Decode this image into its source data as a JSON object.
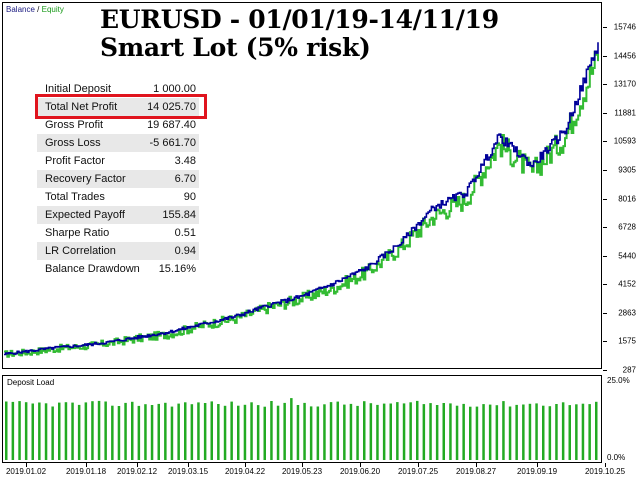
{
  "chart": {
    "legend": {
      "balance": "Balance",
      "separator": "/",
      "equity": "Equity"
    },
    "title_line1": "EURUSD - 01/01/19-14/11/19",
    "title_line2": "Smart Lot (5% risk)",
    "colors": {
      "balance": "#000099",
      "equity": "#33bb33",
      "deposit_load": "#22aa22",
      "highlight": "#e0141e"
    }
  },
  "stats": [
    {
      "label": "Initial Deposit",
      "value": "1 000.00"
    },
    {
      "label": "Total Net Profit",
      "value": "14 025.70"
    },
    {
      "label": "Gross Profit",
      "value": "19 687.40"
    },
    {
      "label": "Gross Loss",
      "value": "-5 661.70"
    },
    {
      "label": "Profit Factor",
      "value": "3.48"
    },
    {
      "label": "Recovery Factor",
      "value": "6.70"
    },
    {
      "label": "Total Trades",
      "value": "90"
    },
    {
      "label": "Expected Payoff",
      "value": "155.84"
    },
    {
      "label": "Sharpe Ratio",
      "value": "0.51"
    },
    {
      "label": "LR Correlation",
      "value": "0.94"
    },
    {
      "label": "Balance Drawdown",
      "value": "15.16%"
    }
  ],
  "deposit_load": {
    "label": "Deposit Load",
    "ytop": "25.0%",
    "ybottom": "0.0%"
  },
  "chart_data": {
    "type": "line",
    "y_ticks": [
      "15746",
      "14456",
      "13170",
      "11881",
      "10593",
      "9305",
      "8016",
      "6728",
      "5440",
      "4152",
      "2863",
      "1575",
      "287"
    ],
    "ylim": [
      287,
      15746
    ],
    "x_ticks": [
      "2019.01.02",
      "2019.01.18",
      "2019.02.12",
      "2019.03.15",
      "2019.04.22",
      "2019.05.23",
      "2019.06.20",
      "2019.07.25",
      "2019.08.27",
      "2019.09.19",
      "2019.10.25"
    ],
    "series": [
      {
        "name": "Balance",
        "x": [
          0,
          4,
          8,
          12,
          16,
          20,
          25,
          30,
          35,
          40,
          45,
          50,
          55,
          60,
          65,
          70,
          75,
          80,
          85,
          90
        ],
        "y": [
          1000,
          1150,
          1300,
          1400,
          1550,
          1750,
          2000,
          2350,
          2700,
          3200,
          3600,
          4200,
          4900,
          6000,
          7600,
          8300,
          10800,
          9500,
          11100,
          15000
        ]
      },
      {
        "name": "Equity",
        "x": [
          0,
          4,
          8,
          12,
          16,
          20,
          25,
          30,
          35,
          40,
          45,
          50,
          55,
          60,
          65,
          70,
          75,
          80,
          85,
          90
        ],
        "y": [
          1000,
          1100,
          1250,
          1350,
          1500,
          1700,
          1900,
          2300,
          2600,
          3100,
          3500,
          4000,
          4700,
          5800,
          7200,
          8000,
          10500,
          9200,
          10800,
          14500
        ]
      }
    ],
    "deposit_load_values": [
      18,
      18,
      18,
      18,
      18,
      18,
      18,
      18,
      18,
      18,
      18,
      18,
      18,
      18,
      18,
      18,
      18,
      18,
      18,
      18,
      18,
      18,
      18,
      18,
      18,
      18,
      18,
      18,
      18,
      18,
      19,
      18,
      18,
      18,
      18,
      18,
      18,
      18,
      18,
      18,
      18,
      18,
      18,
      19,
      18,
      18,
      18,
      18,
      18,
      18,
      18,
      18,
      18,
      18,
      18,
      18,
      18,
      18,
      18,
      18,
      18,
      18,
      18,
      18,
      18,
      18,
      18,
      18,
      18,
      18,
      18,
      18,
      18,
      18,
      18,
      18,
      18,
      18,
      18,
      18,
      18,
      18,
      18,
      18,
      18,
      18,
      18,
      18,
      18,
      18
    ]
  }
}
